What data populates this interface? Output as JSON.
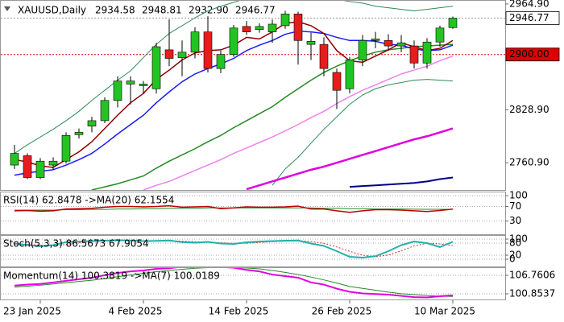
{
  "header": {
    "symbol": "XAUUSD,Daily",
    "ohlc": [
      "2934.58",
      "2948.81",
      "2932.90",
      "2946.77"
    ]
  },
  "chart_data": [
    {
      "type": "candlestick",
      "x": [
        null,
        null,
        "23 Jan 2025",
        null,
        null,
        null,
        null,
        null,
        null,
        null,
        "4 Feb 2025",
        null,
        null,
        null,
        null,
        null,
        null,
        null,
        "14 Feb 2025",
        null,
        null,
        null,
        null,
        null,
        null,
        null,
        "26 Feb 2025",
        null,
        null,
        null,
        null,
        null,
        null,
        null,
        "10 Mar 2025"
      ],
      "open": [
        2758,
        2770,
        2742,
        2758,
        2763,
        2797,
        2808,
        2815,
        2841,
        2862,
        2860,
        2856,
        2906,
        2896,
        2903,
        2929,
        2882,
        2900,
        2936,
        2932,
        2929,
        2937,
        2952,
        2913,
        2913,
        2877,
        2856,
        2893,
        2918,
        2918,
        2911,
        2911,
        2889,
        2916,
        2934.58
      ],
      "high": [
        2784,
        2773,
        2767,
        2768,
        2800,
        2805,
        2820,
        2845,
        2872,
        2872,
        2866,
        2915,
        2945,
        2918,
        2935,
        2949,
        2905,
        2938,
        2943,
        2940,
        2945,
        2956,
        2955,
        2928,
        2922,
        2882,
        2897,
        2925,
        2929,
        2926,
        2925,
        2918,
        2921,
        2937,
        2948.81
      ],
      "low": [
        2753,
        2740,
        2740,
        2752,
        2760,
        2792,
        2800,
        2812,
        2832,
        2836,
        2850,
        2850,
        2885,
        2872,
        2895,
        2877,
        2876,
        2897,
        2925,
        2928,
        2915,
        2933,
        2887,
        2893,
        2872,
        2830,
        2850,
        2885,
        2908,
        2905,
        2903,
        2882,
        2882,
        2910,
        2932.9
      ],
      "close": [
        2773,
        2742,
        2763,
        2763,
        2796,
        2800,
        2815,
        2841,
        2866,
        2866,
        2862,
        2910,
        2895,
        2903,
        2929,
        2882,
        2900,
        2934,
        2929,
        2936,
        2939,
        2952,
        2918,
        2917,
        2882,
        2854,
        2893,
        2918,
        2920,
        2911,
        2915,
        2889,
        2916,
        2934,
        2946.77
      ],
      "up_color": "#22c422",
      "down_color": "#e81c1c",
      "ylim": [
        2726,
        2970
      ],
      "yticks": [
        {
          "value": 2964.9,
          "label": "2964.90"
        },
        {
          "value": 2828.9,
          "label": "2828.90"
        },
        {
          "value": 2760.9,
          "label": "2760.90"
        }
      ],
      "price_lines": [
        {
          "value": 2946.77,
          "color": "#999999",
          "box": "#ffffff",
          "text_color": "#000000"
        },
        {
          "value": 2900,
          "label": "2900.00",
          "color": "#e00000",
          "box": "#e00000",
          "text_color": "#ffffff"
        }
      ],
      "series": [
        {
          "color": "#2e8b57",
          "line_width": 1,
          "values": [
            2773,
            2784,
            2794,
            2804,
            2815,
            2827,
            2841,
            2854,
            2867,
            2879,
            2896,
            2913,
            2927,
            2937,
            2947,
            2956,
            2962,
            2967,
            2972,
            2974,
            2975,
            2976,
            2976,
            2975,
            2973,
            2971,
            2968,
            2966,
            2962,
            2960,
            2958,
            2956,
            2958,
            2960,
            2962
          ]
        },
        {
          "color": "#2e8b57",
          "line_width": 1,
          "values": [
            null,
            null,
            null,
            null,
            null,
            null,
            null,
            null,
            null,
            null,
            null,
            null,
            null,
            null,
            null,
            null,
            null,
            null,
            null,
            null,
            2732,
            2753,
            2768,
            2786,
            2804,
            2820,
            2836,
            2848,
            2856,
            2861,
            2864,
            2867,
            2868,
            2867,
            2866
          ]
        },
        {
          "color": "#000080",
          "line_width": 2,
          "values": [
            null,
            null,
            null,
            null,
            null,
            null,
            null,
            null,
            null,
            null,
            null,
            null,
            null,
            null,
            null,
            null,
            null,
            null,
            null,
            null,
            null,
            null,
            null,
            null,
            null,
            null,
            2730,
            2731,
            2732,
            2733,
            2734,
            2735,
            2737,
            2740,
            2742
          ]
        },
        {
          "color": "#e000e0",
          "line_width": 2.5,
          "values": [
            null,
            null,
            null,
            null,
            null,
            null,
            null,
            null,
            null,
            null,
            null,
            null,
            null,
            null,
            null,
            null,
            null,
            null,
            2727,
            2732,
            2737,
            2742,
            2747,
            2752,
            2756,
            2761,
            2766,
            2771,
            2776,
            2781,
            2786,
            2791,
            2795,
            2800,
            2805
          ]
        },
        {
          "color": "#ee82ee",
          "line_width": 1.5,
          "values": [
            null,
            null,
            null,
            null,
            null,
            null,
            null,
            null,
            null,
            null,
            2726,
            2732,
            2737,
            2744,
            2751,
            2758,
            2765,
            2773,
            2780,
            2787,
            2794,
            2802,
            2810,
            2819,
            2827,
            2837,
            2846,
            2854,
            2861,
            2868,
            2875,
            2880,
            2885,
            2892,
            2898
          ]
        },
        {
          "color": "#228b22",
          "line_width": 1.5,
          "values": [
            null,
            null,
            null,
            null,
            null,
            null,
            2726,
            2730,
            2734,
            2739,
            2744,
            2754,
            2763,
            2771,
            2779,
            2788,
            2796,
            2806,
            2815,
            2824,
            2833,
            2845,
            2856,
            2867,
            2877,
            2885,
            2892,
            2898,
            2903,
            2906,
            2908,
            2910,
            2911,
            2912,
            2913
          ]
        },
        {
          "color": "#1a1aff",
          "line_width": 1.5,
          "values": [
            2745,
            2748,
            2750,
            2752,
            2758,
            2765,
            2773,
            2785,
            2798,
            2810,
            2822,
            2838,
            2852,
            2865,
            2875,
            2882,
            2888,
            2895,
            2905,
            2912,
            2918,
            2926,
            2930,
            2929,
            2927,
            2922,
            2918,
            2918,
            2917,
            2913,
            2912,
            2907,
            2905,
            2906,
            2912
          ]
        },
        {
          "color": "#8b0000",
          "line_width": 1.5,
          "values": [
            2765,
            2762,
            2757,
            2755,
            2765,
            2775,
            2788,
            2805,
            2822,
            2838,
            2850,
            2868,
            2880,
            2893,
            2902,
            2905,
            2906,
            2912,
            2922,
            2920,
            2929,
            2940,
            2942,
            2937,
            2927,
            2905,
            2892,
            2890,
            2898,
            2906,
            2915,
            2910,
            2905,
            2908,
            2918
          ]
        }
      ]
    },
    {
      "type": "line",
      "title": "RSI(14) 62.8478 ->MA(20) 62.1554",
      "ylim": [
        0,
        100
      ],
      "yticks": [
        100,
        70,
        30
      ],
      "grid": true,
      "series": [
        {
          "color": "#228b22",
          "line_width": 1,
          "values": [
            60,
            60,
            60,
            60,
            61,
            61,
            62,
            62,
            63,
            63,
            64,
            64,
            65,
            65,
            65,
            66,
            66,
            66,
            66,
            66,
            66,
            66,
            66,
            66,
            65,
            65,
            64,
            64,
            63,
            63,
            63,
            62.5,
            62.3,
            62.2,
            62.1554
          ]
        },
        {
          "color": "#c00000",
          "line_width": 1.5,
          "values": [
            58,
            59,
            57,
            58,
            63,
            64,
            65,
            68,
            70,
            70,
            69,
            70,
            72,
            68,
            69,
            70,
            64,
            66,
            69,
            68,
            68,
            69,
            71,
            63,
            63,
            58,
            54,
            58,
            61,
            61,
            60,
            58,
            56,
            59,
            62.8478
          ]
        }
      ]
    },
    {
      "type": "line",
      "title": "Stoch(5,3,3) 86.5673 67.9054",
      "ylim": [
        0,
        100
      ],
      "yticks": [
        100,
        80,
        20,
        0
      ],
      "grid": true,
      "series": [
        {
          "color": "#e03030",
          "line_width": 1,
          "dash": true,
          "values": [
            75,
            74,
            70,
            68,
            73,
            81,
            88,
            90,
            92,
            93,
            92,
            91,
            91,
            90,
            87,
            84,
            82,
            79,
            79,
            83,
            87,
            90,
            92,
            88,
            79,
            61,
            39,
            20,
            12,
            21,
            42,
            66,
            79,
            76,
            67.9054
          ]
        },
        {
          "color": "#20b2aa",
          "line_width": 2,
          "values": [
            78,
            70,
            65,
            70,
            85,
            88,
            90,
            92,
            94,
            93,
            90,
            91,
            93,
            85,
            82,
            86,
            78,
            76,
            84,
            88,
            90,
            92,
            93,
            78,
            66,
            40,
            12,
            8,
            15,
            40,
            70,
            88,
            80,
            60,
            86.5673
          ]
        }
      ]
    },
    {
      "type": "line",
      "title": "Momentum(14) 100.3819 ->MA(7) 100.0189",
      "ylim": [
        99.06,
        109.07
      ],
      "yticks": [
        106.7606,
        100.8537
      ],
      "grid": true,
      "series": [
        {
          "color": "#228b22",
          "line_width": 1,
          "values": [
            103,
            103.3,
            103.6,
            104,
            104.4,
            104.8,
            105.2,
            105.7,
            106.3,
            106.9,
            107.4,
            107.9,
            108.3,
            108.7,
            109,
            109.2,
            109.3,
            109.3,
            109.1,
            108.8,
            108.3,
            107.7,
            107,
            106.2,
            105.3,
            104.3,
            103.2,
            102.6,
            102,
            101.4,
            100.9,
            100.6,
            100.3,
            100.1,
            100.0189
          ]
        },
        {
          "color": "#e000e0",
          "line_width": 2,
          "values": [
            103.5,
            103.8,
            104,
            104.5,
            105,
            105.5,
            106,
            106.8,
            107.5,
            108,
            108.3,
            108.8,
            109,
            109.5,
            109.3,
            109.5,
            109.4,
            109.2,
            108.5,
            108,
            107,
            106.5,
            106,
            104.5,
            103.8,
            102.5,
            101.5,
            101,
            100.8,
            100.6,
            100.2,
            99.8,
            99.7,
            100.1,
            100.3819
          ]
        }
      ]
    }
  ]
}
